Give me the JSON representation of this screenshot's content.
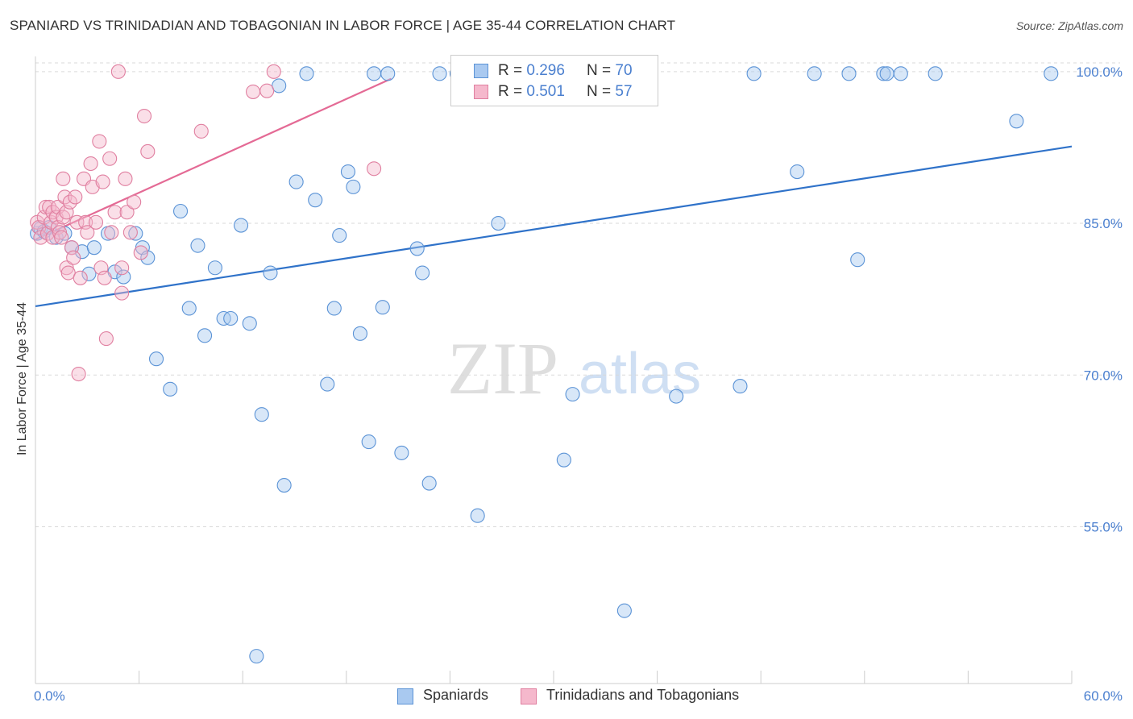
{
  "header": {
    "title": "SPANIARD VS TRINIDADIAN AND TOBAGONIAN IN LABOR FORCE | AGE 35-44 CORRELATION CHART",
    "source": "Source: ZipAtlas.com"
  },
  "watermark": {
    "part1": "ZIP",
    "part2": "atlas"
  },
  "colors": {
    "blue_fill": "#a9c9f0",
    "blue_stroke": "#5b93d6",
    "blue_line": "#2f72c9",
    "pink_fill": "#f5b8cc",
    "pink_stroke": "#e07fa0",
    "pink_line": "#e46a95",
    "grid": "#d9d9d9",
    "axis_text": "#4a7fcf"
  },
  "legend": {
    "rows": [
      {
        "r_label": "R = ",
        "r_value": "0.296",
        "n_label": "N = ",
        "n_value": "70"
      },
      {
        "r_label": "R = ",
        "r_value": "0.501",
        "n_label": "N = ",
        "n_value": "57"
      }
    ]
  },
  "bottom_legend": [
    "Spaniards",
    "Trinidadians and Tobagonians"
  ],
  "chart_data": {
    "type": "scatter",
    "title": "SPANIARD VS TRINIDADIAN AND TOBAGONIAN IN LABOR FORCE | AGE 35-44 CORRELATION CHART",
    "xlabel": "",
    "ylabel": "In Labor Force | Age 35-44",
    "xlim": [
      0,
      60
    ],
    "ylim": [
      39.5,
      101.5
    ],
    "x_tick_labels": [
      "0.0%",
      "60.0%"
    ],
    "y_ticks": [
      55,
      70,
      85,
      100
    ],
    "y_tick_labels": [
      "55.0%",
      "70.0%",
      "85.0%",
      "100.0%"
    ],
    "series": [
      {
        "name": "Spaniards",
        "r": 0.296,
        "n": 70,
        "trend": {
          "x": [
            0,
            60
          ],
          "y": [
            76.8,
            92.6
          ]
        },
        "points": [
          [
            0.1,
            84.0
          ],
          [
            0.3,
            84.5
          ],
          [
            0.5,
            84.2
          ],
          [
            0.8,
            84.6
          ],
          [
            1.2,
            83.6
          ],
          [
            1.7,
            84.0
          ],
          [
            2.1,
            82.6
          ],
          [
            2.7,
            82.2
          ],
          [
            3.1,
            80.0
          ],
          [
            3.4,
            82.6
          ],
          [
            4.2,
            84.0
          ],
          [
            4.6,
            80.2
          ],
          [
            5.1,
            79.7
          ],
          [
            5.8,
            84.0
          ],
          [
            6.2,
            82.6
          ],
          [
            6.5,
            81.6
          ],
          [
            7.0,
            71.6
          ],
          [
            7.8,
            68.6
          ],
          [
            8.4,
            86.2
          ],
          [
            8.9,
            76.6
          ],
          [
            9.4,
            82.8
          ],
          [
            9.8,
            73.9
          ],
          [
            10.4,
            80.6
          ],
          [
            10.9,
            75.6
          ],
          [
            11.3,
            75.6
          ],
          [
            11.9,
            84.8
          ],
          [
            12.4,
            75.1
          ],
          [
            12.8,
            42.2
          ],
          [
            13.1,
            66.1
          ],
          [
            13.6,
            80.1
          ],
          [
            14.1,
            98.6
          ],
          [
            14.4,
            59.1
          ],
          [
            15.1,
            89.1
          ],
          [
            15.7,
            99.8
          ],
          [
            16.2,
            87.3
          ],
          [
            16.9,
            69.1
          ],
          [
            17.3,
            76.6
          ],
          [
            17.6,
            83.8
          ],
          [
            18.1,
            90.1
          ],
          [
            18.4,
            88.6
          ],
          [
            18.8,
            74.1
          ],
          [
            19.3,
            63.4
          ],
          [
            19.6,
            99.8
          ],
          [
            20.1,
            76.7
          ],
          [
            20.4,
            99.8
          ],
          [
            21.2,
            62.3
          ],
          [
            22.1,
            82.5
          ],
          [
            22.4,
            80.1
          ],
          [
            22.8,
            59.3
          ],
          [
            23.4,
            99.8
          ],
          [
            24.4,
            99.8
          ],
          [
            24.5,
            98.0
          ],
          [
            25.6,
            56.1
          ],
          [
            26.8,
            85.0
          ],
          [
            30.6,
            61.6
          ],
          [
            31.1,
            68.1
          ],
          [
            34.1,
            46.7
          ],
          [
            37.1,
            67.9
          ],
          [
            40.8,
            68.9
          ],
          [
            41.6,
            99.8
          ],
          [
            44.1,
            90.1
          ],
          [
            45.1,
            99.8
          ],
          [
            47.1,
            99.8
          ],
          [
            47.6,
            81.4
          ],
          [
            49.1,
            99.8
          ],
          [
            49.3,
            99.8
          ],
          [
            50.1,
            99.8
          ],
          [
            52.1,
            99.8
          ],
          [
            56.8,
            95.1
          ],
          [
            58.8,
            99.8
          ]
        ]
      },
      {
        "name": "Trinidadians and Tobagonians",
        "r": 0.501,
        "n": 57,
        "trend": {
          "x": [
            0,
            20.6
          ],
          "y": [
            83.4,
            99.3
          ]
        },
        "points": [
          [
            0.1,
            85.1
          ],
          [
            0.2,
            84.6
          ],
          [
            0.3,
            83.6
          ],
          [
            0.5,
            85.6
          ],
          [
            0.6,
            86.6
          ],
          [
            0.7,
            84.0
          ],
          [
            0.8,
            86.6
          ],
          [
            0.9,
            85.1
          ],
          [
            1.0,
            83.6
          ],
          [
            1.0,
            86.1
          ],
          [
            1.2,
            85.6
          ],
          [
            1.3,
            86.6
          ],
          [
            1.3,
            84.6
          ],
          [
            1.4,
            84.1
          ],
          [
            1.5,
            83.6
          ],
          [
            1.6,
            89.4
          ],
          [
            1.6,
            85.6
          ],
          [
            1.7,
            87.6
          ],
          [
            1.8,
            86.1
          ],
          [
            1.8,
            80.6
          ],
          [
            1.9,
            80.1
          ],
          [
            2.0,
            87.1
          ],
          [
            2.1,
            82.6
          ],
          [
            2.2,
            81.6
          ],
          [
            2.3,
            87.6
          ],
          [
            2.4,
            85.1
          ],
          [
            2.5,
            70.1
          ],
          [
            2.6,
            79.6
          ],
          [
            2.8,
            89.4
          ],
          [
            2.9,
            85.1
          ],
          [
            3.0,
            84.1
          ],
          [
            3.2,
            90.9
          ],
          [
            3.3,
            88.6
          ],
          [
            3.5,
            85.1
          ],
          [
            3.7,
            93.1
          ],
          [
            3.8,
            80.6
          ],
          [
            3.9,
            89.1
          ],
          [
            4.0,
            79.6
          ],
          [
            4.1,
            73.6
          ],
          [
            4.3,
            91.4
          ],
          [
            4.4,
            84.1
          ],
          [
            4.6,
            86.1
          ],
          [
            4.8,
            100.0
          ],
          [
            5.0,
            80.6
          ],
          [
            5.0,
            78.1
          ],
          [
            5.2,
            89.4
          ],
          [
            5.3,
            86.1
          ],
          [
            5.5,
            84.1
          ],
          [
            5.7,
            87.1
          ],
          [
            6.1,
            82.1
          ],
          [
            6.3,
            95.6
          ],
          [
            6.5,
            92.1
          ],
          [
            9.6,
            94.1
          ],
          [
            12.6,
            98.0
          ],
          [
            13.4,
            98.1
          ],
          [
            13.8,
            100.0
          ],
          [
            19.6,
            90.4
          ]
        ]
      }
    ]
  }
}
